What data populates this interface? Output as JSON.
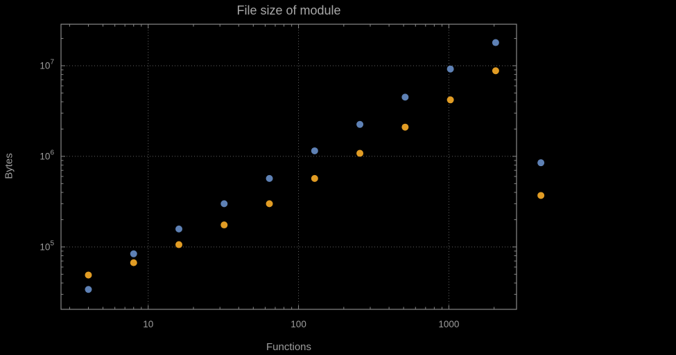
{
  "chart_data": {
    "type": "scatter",
    "title": "File size of module",
    "xlabel": "Functions",
    "ylabel": "Bytes",
    "x_scale": "log",
    "y_scale": "log",
    "xlim": [
      2.63,
      2820
    ],
    "ylim": [
      20500,
      28700000
    ],
    "grid": true,
    "legend": "none",
    "x_ticks": [
      10,
      100,
      1000
    ],
    "x_tick_labels": [
      "10",
      "100",
      "1000"
    ],
    "y_ticks": [
      100000,
      1000000,
      10000000
    ],
    "y_tick_labels": [
      {
        "base": "10",
        "exp": "5"
      },
      {
        "base": "10",
        "exp": "6"
      },
      {
        "base": "10",
        "exp": "7"
      }
    ],
    "style": {
      "background": "#000000",
      "frame": "#8a8a8a",
      "grid": "#646464",
      "text": "#9e9e9e",
      "point_radius": 5
    },
    "series": [
      {
        "name": "blue",
        "color": "#5e81b5",
        "points": [
          [
            4,
            34000
          ],
          [
            8,
            84000
          ],
          [
            16,
            158000
          ],
          [
            32,
            300000
          ],
          [
            64,
            570000
          ],
          [
            128,
            1150000
          ],
          [
            256,
            2250000
          ],
          [
            512,
            4500000
          ],
          [
            1024,
            9200000
          ],
          [
            2048,
            18000000
          ],
          [
            4096,
            850000
          ]
        ]
      },
      {
        "name": "orange",
        "color": "#e19c24",
        "points": [
          [
            4,
            49000
          ],
          [
            8,
            67000
          ],
          [
            16,
            106000
          ],
          [
            32,
            175000
          ],
          [
            64,
            300000
          ],
          [
            128,
            570000
          ],
          [
            256,
            1080000
          ],
          [
            512,
            2100000
          ],
          [
            1024,
            4200000
          ],
          [
            2048,
            8800000
          ],
          [
            4096,
            370000
          ]
        ]
      }
    ]
  }
}
